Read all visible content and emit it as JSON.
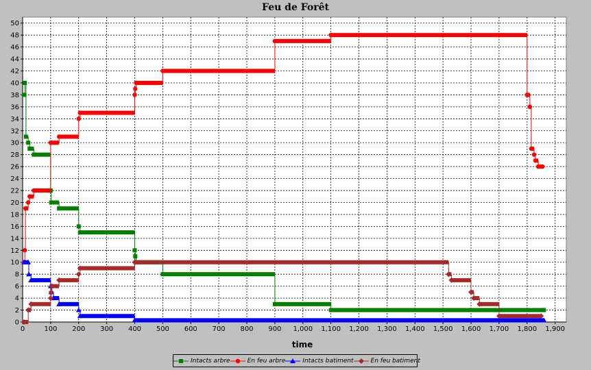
{
  "chart_data": {
    "type": "line",
    "title": "Feu de Forêt",
    "xlabel": "time",
    "ylabel": "",
    "xlim": [
      0,
      1940
    ],
    "ylim": [
      0,
      51
    ],
    "x_ticks": [
      0,
      100,
      200,
      300,
      400,
      500,
      600,
      700,
      800,
      900,
      1000,
      1100,
      1200,
      1300,
      1400,
      1500,
      1600,
      1700,
      1800,
      1900
    ],
    "x_tick_labels": [
      "0",
      "100",
      "200",
      "300",
      "400",
      "500",
      "600",
      "700",
      "800",
      "900",
      "1,000",
      "1,100",
      "1,200",
      "1,300",
      "1,400",
      "1,500",
      "1,600",
      "1,700",
      "1,800",
      "1,900"
    ],
    "y_ticks": [
      0,
      2,
      4,
      6,
      8,
      10,
      12,
      14,
      16,
      18,
      20,
      22,
      24,
      26,
      28,
      30,
      32,
      34,
      36,
      38,
      40,
      42,
      44,
      46,
      48,
      50
    ],
    "grid": true,
    "step": true,
    "legend_position": "bottom",
    "series": [
      {
        "name": "Intacts arbre",
        "color": "#008000",
        "marker": "square",
        "points": [
          [
            5,
            38
          ],
          [
            8,
            40
          ],
          [
            12,
            31
          ],
          [
            20,
            30
          ],
          [
            25,
            29
          ],
          [
            40,
            28
          ],
          [
            100,
            22
          ],
          [
            102,
            20
          ],
          [
            130,
            19
          ],
          [
            200,
            16
          ],
          [
            205,
            15
          ],
          [
            400,
            12
          ],
          [
            402,
            11
          ],
          [
            405,
            10
          ],
          [
            500,
            8
          ],
          [
            900,
            3
          ],
          [
            1100,
            2
          ],
          [
            1860,
            2
          ]
        ]
      },
      {
        "name": "En feu arbre",
        "color": "#ff0000",
        "marker": "circle",
        "points": [
          [
            5,
            10
          ],
          [
            8,
            12
          ],
          [
            10,
            19
          ],
          [
            20,
            20
          ],
          [
            25,
            21
          ],
          [
            40,
            22
          ],
          [
            100,
            30
          ],
          [
            130,
            31
          ],
          [
            200,
            34
          ],
          [
            205,
            35
          ],
          [
            400,
            38
          ],
          [
            402,
            39
          ],
          [
            405,
            40
          ],
          [
            500,
            42
          ],
          [
            900,
            47
          ],
          [
            1100,
            48
          ],
          [
            1800,
            38
          ],
          [
            1810,
            36
          ],
          [
            1815,
            29
          ],
          [
            1825,
            28
          ],
          [
            1830,
            27
          ],
          [
            1840,
            26
          ],
          [
            1855,
            26
          ]
        ]
      },
      {
        "name": "Intacts batiment",
        "color": "#0000ff",
        "marker": "triangle",
        "points": [
          [
            5,
            10
          ],
          [
            20,
            10
          ],
          [
            22,
            8
          ],
          [
            30,
            7
          ],
          [
            100,
            6
          ],
          [
            102,
            5
          ],
          [
            110,
            4
          ],
          [
            130,
            3
          ],
          [
            200,
            2
          ],
          [
            205,
            1
          ],
          [
            400,
            0.3
          ],
          [
            1860,
            0.3
          ]
        ]
      },
      {
        "name": "En feu batiment",
        "color": "#a52a2a",
        "marker": "diamond",
        "points": [
          [
            5,
            0
          ],
          [
            20,
            2
          ],
          [
            30,
            3
          ],
          [
            100,
            4
          ],
          [
            102,
            5
          ],
          [
            105,
            6
          ],
          [
            130,
            7
          ],
          [
            200,
            8
          ],
          [
            205,
            9
          ],
          [
            400,
            10
          ],
          [
            1520,
            8
          ],
          [
            1530,
            7
          ],
          [
            1600,
            5
          ],
          [
            1610,
            4
          ],
          [
            1630,
            3
          ],
          [
            1700,
            1
          ],
          [
            1850,
            1
          ]
        ]
      }
    ]
  }
}
